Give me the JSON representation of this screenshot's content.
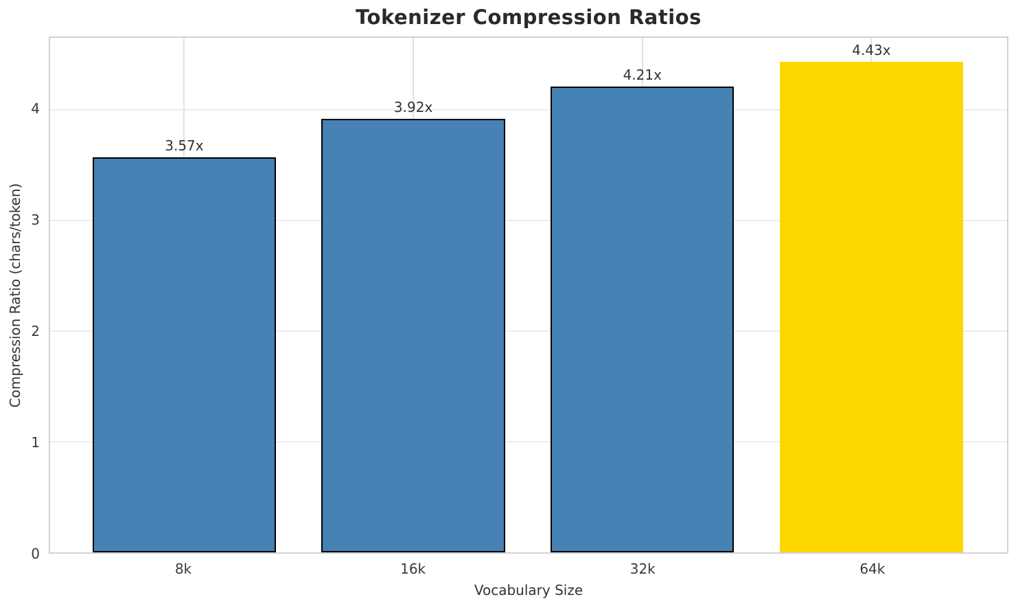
{
  "chart_data": {
    "type": "bar",
    "title": "Tokenizer Compression Ratios",
    "xlabel": "Vocabulary Size",
    "ylabel": "Compression Ratio (chars/token)",
    "categories": [
      "8k",
      "16k",
      "32k",
      "64k"
    ],
    "values": [
      3.57,
      3.92,
      4.21,
      4.43
    ],
    "bar_labels": [
      "3.57x",
      "3.92x",
      "4.21x",
      "4.43x"
    ],
    "bar_colors": [
      "#4682B4",
      "#4682B4",
      "#4682B4",
      "#FFD700"
    ],
    "bar_edge_colors": [
      "#000000",
      "#000000",
      "#000000",
      "none"
    ],
    "yticks": [
      0,
      1,
      2,
      3,
      4
    ],
    "ylim": [
      0,
      4.65
    ],
    "grid": true,
    "legend": false,
    "highlight_category": "64k"
  },
  "colors": {
    "bar_blue": "#4682B4",
    "bar_gold": "#FFD700",
    "bar_edge": "#000000",
    "grid_horizontal": "#ececec",
    "grid_vertical": "#e2e2e2",
    "spine": "#d2d2d2",
    "title_text": "#2a2a2a",
    "tick_text": "#3a3a3a",
    "label_text": "#333333"
  }
}
